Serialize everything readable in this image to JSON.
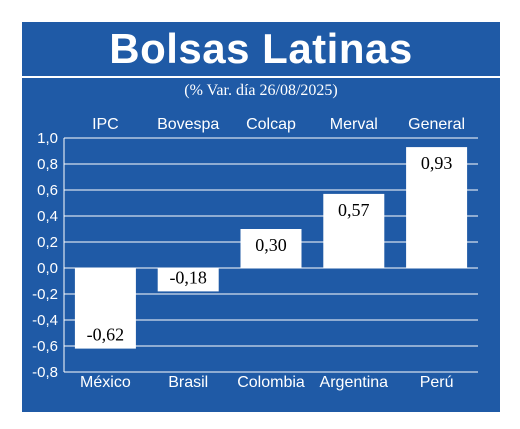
{
  "title": "Bolsas Latinas",
  "subtitle": "(% Var. día 26/08/2025)",
  "colors": {
    "background": "#1f5aa6",
    "bar": "#ffffff",
    "text": "#ffffff",
    "value_text": "#000000"
  },
  "chart_data": {
    "type": "bar",
    "title": "Bolsas Latinas",
    "subtitle": "(% Var. día 26/08/2025)",
    "top_labels": [
      "IPC",
      "Bovespa",
      "Colcap",
      "Merval",
      "General"
    ],
    "categories": [
      "México",
      "Brasil",
      "Colombia",
      "Argentina",
      "Perú"
    ],
    "values": [
      -0.62,
      -0.18,
      0.3,
      0.57,
      0.93
    ],
    "value_labels": [
      "-0,62",
      "-0,18",
      "0,30",
      "0,57",
      "0,93"
    ],
    "ylim": [
      -0.8,
      1.0
    ],
    "yticks": [
      1.0,
      0.8,
      0.6,
      0.4,
      0.2,
      0.0,
      -0.2,
      -0.4,
      -0.6,
      -0.8
    ],
    "ytick_labels": [
      "1,0",
      "0,8",
      "0,6",
      "0,4",
      "0,2",
      "0,0",
      "-0,2",
      "-0,4",
      "-0,6",
      "-0,8"
    ],
    "grid": true
  }
}
